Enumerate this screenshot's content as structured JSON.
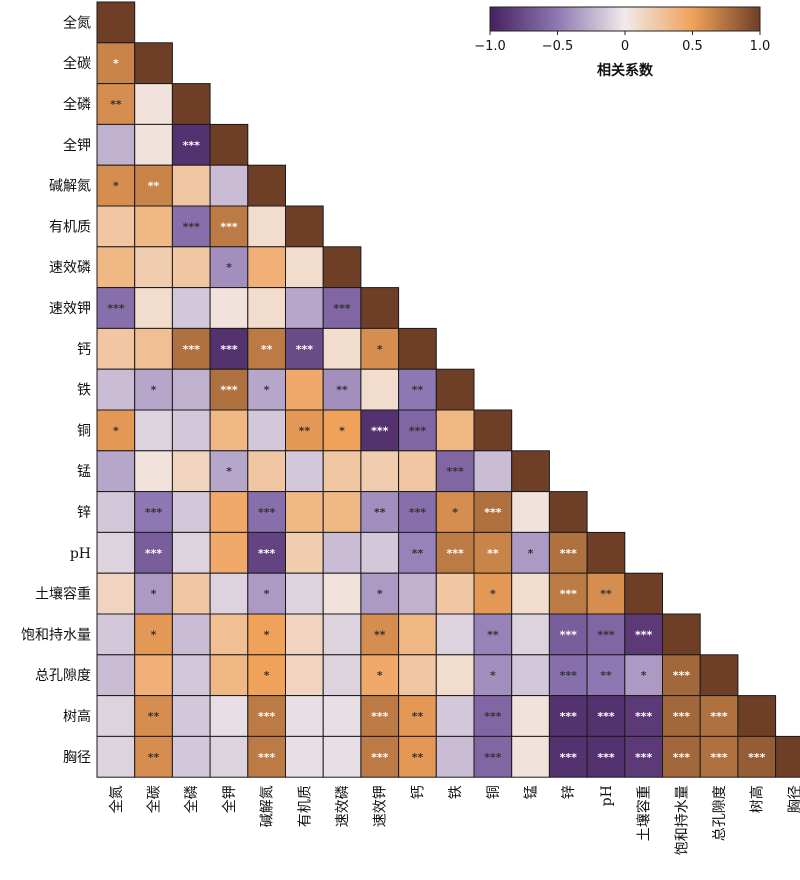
{
  "chart_data": {
    "type": "heatmap",
    "variables": [
      "全氮",
      "全碳",
      "全磷",
      "全钾",
      "碱解氮",
      "有机质",
      "速效磷",
      "速效钾",
      "钙",
      "铁",
      "铜",
      "锰",
      "锌",
      "pH",
      "土壤容重",
      "饱和持水量",
      "总孔隙度",
      "树高",
      "胸径"
    ],
    "lower_triangle_values": [
      [
        1.0
      ],
      [
        0.65,
        1.0
      ],
      [
        0.6,
        0.05,
        1.0
      ],
      [
        -0.25,
        0.05,
        -0.9,
        1.0
      ],
      [
        0.6,
        0.65,
        0.25,
        -0.2,
        1.0
      ],
      [
        0.25,
        0.35,
        -0.55,
        0.7,
        0.1,
        1.0
      ],
      [
        0.35,
        0.2,
        0.25,
        -0.4,
        0.4,
        0.1,
        1.0
      ],
      [
        -0.55,
        0.1,
        -0.15,
        0.05,
        0.1,
        -0.3,
        -0.6,
        1.0
      ],
      [
        0.25,
        0.3,
        0.75,
        -0.9,
        0.7,
        -0.75,
        0.1,
        0.6,
        1.0
      ],
      [
        -0.2,
        -0.3,
        -0.25,
        0.75,
        -0.3,
        0.45,
        -0.4,
        0.1,
        -0.5,
        1.0
      ],
      [
        0.55,
        -0.1,
        -0.15,
        0.35,
        -0.15,
        0.55,
        0.5,
        -0.9,
        -0.6,
        0.35,
        1.0
      ],
      [
        -0.3,
        0.05,
        0.15,
        -0.3,
        0.25,
        -0.15,
        0.25,
        0.2,
        0.25,
        -0.6,
        -0.2,
        1.0
      ],
      [
        -0.15,
        -0.5,
        -0.15,
        0.45,
        -0.55,
        0.35,
        0.35,
        -0.4,
        -0.55,
        0.6,
        0.75,
        0.05,
        1.0
      ],
      [
        -0.1,
        -0.65,
        -0.1,
        0.45,
        -0.8,
        0.2,
        -0.2,
        -0.15,
        -0.45,
        0.7,
        0.65,
        -0.35,
        0.75,
        1.0
      ],
      [
        0.15,
        -0.35,
        0.25,
        -0.1,
        -0.35,
        -0.1,
        0.05,
        -0.35,
        -0.25,
        0.25,
        0.55,
        0.1,
        0.7,
        0.6,
        1.0
      ],
      [
        -0.15,
        0.55,
        -0.2,
        0.3,
        0.5,
        0.15,
        -0.1,
        0.6,
        0.35,
        -0.1,
        -0.45,
        -0.1,
        -0.65,
        -0.6,
        -0.85,
        1.0
      ],
      [
        -0.2,
        0.4,
        -0.15,
        0.35,
        0.5,
        0.15,
        -0.1,
        0.45,
        0.25,
        0.1,
        -0.4,
        -0.15,
        -0.55,
        -0.5,
        -0.35,
        0.8,
        1.0
      ],
      [
        -0.1,
        0.6,
        -0.15,
        -0.05,
        0.7,
        -0.05,
        -0.05,
        0.7,
        0.55,
        -0.15,
        -0.6,
        0.05,
        -0.9,
        -0.9,
        -0.85,
        0.8,
        0.75,
        1.0
      ],
      [
        -0.1,
        0.6,
        -0.15,
        -0.1,
        0.7,
        -0.05,
        -0.05,
        0.7,
        0.55,
        -0.2,
        -0.6,
        0.05,
        -0.9,
        -0.9,
        -0.85,
        0.8,
        0.75,
        0.85,
        1.0
      ]
    ],
    "significance": [
      [
        ""
      ],
      [
        "*",
        ""
      ],
      [
        "**",
        "",
        ""
      ],
      [
        "",
        "",
        "***",
        ""
      ],
      [
        "*",
        "**",
        "",
        "",
        ""
      ],
      [
        "",
        "",
        "***",
        "***",
        "",
        ""
      ],
      [
        "",
        "",
        "",
        "*",
        "",
        "",
        ""
      ],
      [
        "***",
        "",
        "",
        "",
        "",
        "",
        "***",
        ""
      ],
      [
        "",
        "",
        "***",
        "***",
        "**",
        "***",
        "",
        "*",
        ""
      ],
      [
        "",
        "*",
        "",
        "***",
        "*",
        "",
        "**",
        "",
        "**",
        ""
      ],
      [
        "*",
        "",
        "",
        "",
        "",
        "**",
        "*",
        "***",
        "***",
        "",
        ""
      ],
      [
        "",
        "",
        "",
        "*",
        "",
        "",
        "",
        "",
        "",
        "***",
        "",
        ""
      ],
      [
        "",
        "***",
        "",
        "",
        "***",
        "",
        "",
        "**",
        "***",
        "*",
        "***",
        "",
        ""
      ],
      [
        "",
        "***",
        "",
        "",
        "***",
        "",
        "",
        "",
        "**",
        "***",
        "**",
        "*",
        "***",
        ""
      ],
      [
        "",
        "*",
        "",
        "",
        "*",
        "",
        "",
        "*",
        "",
        "",
        "*",
        "",
        "***",
        "**",
        ""
      ],
      [
        "",
        "*",
        "",
        "",
        "*",
        "",
        "",
        "**",
        "",
        "",
        "**",
        "",
        "***",
        "***",
        "***",
        ""
      ],
      [
        "",
        "",
        "",
        "",
        "*",
        "",
        "",
        "*",
        "",
        "",
        "*",
        "",
        "***",
        "**",
        "*",
        "***",
        ""
      ],
      [
        "",
        "**",
        "",
        "",
        "***",
        "",
        "",
        "***",
        "**",
        "",
        "***",
        "",
        "***",
        "***",
        "***",
        "***",
        "***",
        ""
      ],
      [
        "",
        "**",
        "",
        "",
        "***",
        "",
        "",
        "***",
        "**",
        "",
        "***",
        "",
        "***",
        "***",
        "***",
        "***",
        "***",
        "***",
        ""
      ]
    ],
    "colorbar": {
      "label": "相关系数",
      "ticks": [
        "−1.0",
        "−0.5",
        "0",
        "0.5",
        "1.0"
      ],
      "range": [
        -1,
        1
      ],
      "colors": {
        "neg": "#46205f",
        "neg_mid": "#8e78b3",
        "zero": "#f1eaea",
        "pos_mid": "#f0a25a",
        "pos": "#6e3f26"
      }
    }
  }
}
